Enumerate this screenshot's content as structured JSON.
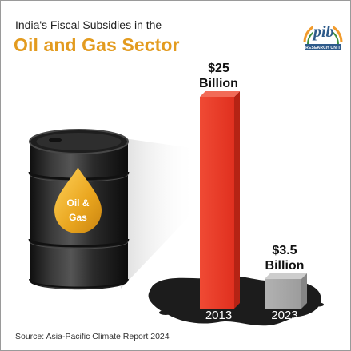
{
  "header": {
    "subtitle": "India's Fiscal Subsidies in the",
    "title": "Oil and Gas Sector"
  },
  "logo": {
    "text": "pib",
    "subtext": "RESEARCH UNIT"
  },
  "drum": {
    "label_line1": "Oil &",
    "label_line2": "Gas"
  },
  "colors": {
    "title": "#e39b1f",
    "bar_2013": "#e8382a",
    "bar_2023": "#a7a7a7",
    "drum": "#262626",
    "drop": "#f0b332"
  },
  "chart_data": {
    "type": "bar",
    "categories": [
      "2013",
      "2023"
    ],
    "values": [
      25,
      3.5
    ],
    "unit": "Billion USD",
    "value_labels": [
      {
        "line1": "$25",
        "line2": "Billion"
      },
      {
        "line1": "$3.5",
        "line2": "Billion"
      }
    ],
    "title": "Oil and Gas Sector",
    "xlabel": "",
    "ylabel": "",
    "grid": false
  },
  "footer": {
    "source": "Source: Asia-Pacific Climate Report 2024"
  }
}
